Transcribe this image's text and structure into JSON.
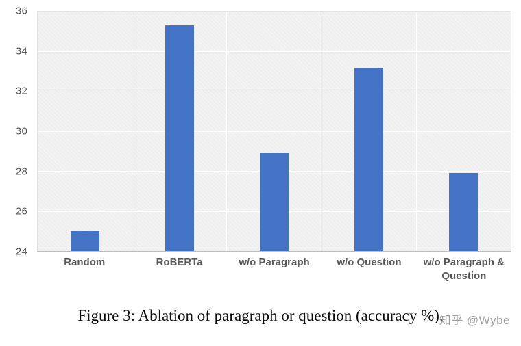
{
  "chart_data": {
    "type": "bar",
    "categories": [
      "Random",
      "RoBERTa",
      "w/o Paragraph",
      "w/o Question",
      "w/o Paragraph & Question"
    ],
    "values": [
      25.0,
      35.3,
      28.9,
      33.2,
      27.9
    ],
    "title": "",
    "xlabel": "",
    "ylabel": "",
    "ylim": [
      24,
      36
    ],
    "yticks": [
      24,
      26,
      28,
      30,
      32,
      34,
      36
    ],
    "ytick_step": 2,
    "bar_color": "#4472c4",
    "plot_background": "#f2f2f2",
    "gridline_color": "#ffffff",
    "tick_label_color": "#595959",
    "grid": "horizontal gridlines + vertical category separators",
    "legend_position": "none"
  },
  "caption": {
    "text": "Figure 3: Ablation of paragraph or question (accuracy %)."
  },
  "watermark": {
    "text": "知乎 @Wybe"
  }
}
